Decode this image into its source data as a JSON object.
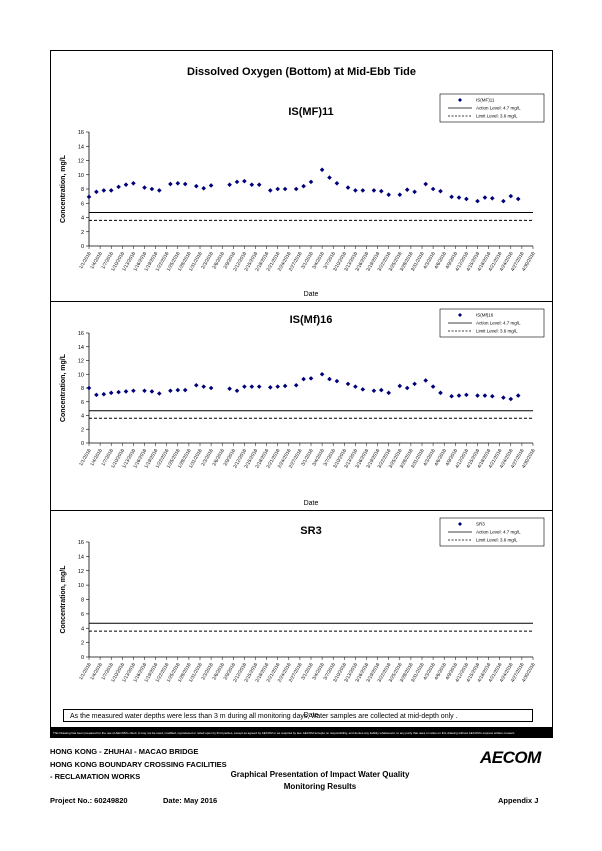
{
  "page": {
    "main_title": "Dissolved Oxygen (Bottom) at Mid-Ebb Tide",
    "note": "As the measured water depths were less than 3 m during all monitoring days, water samples are collected  at mid-depth only .",
    "disclaimer": "This Drawing has been prepared for the use of AECOM's client. It may not be used, modified, reproduced or relied upon by third parties, except as agreed by AECOM or as required by law. AECOM accepts no responsibility, and denies any liability whatsoever, to any party that uses or relies on this drawing without AECOM's express written consent.",
    "footer": {
      "line1": "HONG KONG - ZHUHAI - MACAO BRIDGE",
      "line2": "HONG KONG BOUNDARY CROSSING FACILITIES",
      "line3": "- RECLAMATION WORKS",
      "center1": "Graphical Presentation of Impact Water Quality",
      "center2": "Monitoring Results",
      "project": "Project No.: 60249820",
      "date": "Date: May 2016",
      "appendix": "Appendix J",
      "logo": "AECOM"
    }
  },
  "chart_data": [
    {
      "type": "scatter",
      "title": "IS(MF)11",
      "xlabel": "Date",
      "ylabel": "Concentration, mg/L",
      "ylim": [
        0,
        16
      ],
      "yticks": [
        0,
        2,
        4,
        6,
        8,
        10,
        12,
        14,
        16
      ],
      "xtick_labels": [
        "1/1/2016",
        "1/4/2016",
        "1/7/2016",
        "1/10/2016",
        "1/13/2016",
        "1/16/2016",
        "1/19/2016",
        "1/22/2016",
        "1/25/2016",
        "1/28/2016",
        "1/31/2016",
        "2/3/2016",
        "2/6/2016",
        "2/9/2016",
        "2/12/2016",
        "2/15/2016",
        "2/18/2016",
        "2/21/2016",
        "2/24/2016",
        "2/27/2016",
        "3/1/2016",
        "3/4/2016",
        "3/7/2016",
        "3/10/2016",
        "3/13/2016",
        "3/16/2016",
        "3/19/2016",
        "3/22/2016",
        "3/25/2016",
        "3/28/2016",
        "3/31/2016",
        "4/3/2016",
        "4/6/2016",
        "4/9/2016",
        "4/12/2016",
        "4/15/2016",
        "4/18/2016",
        "4/21/2016",
        "4/24/2016",
        "4/27/2016",
        "4/30/2016"
      ],
      "legend": {
        "position": "top-right",
        "series_label": "IS(MF)11",
        "action_label": "Action Level: 4.7 mg/L",
        "limit_label": "Limit Level: 3.6 mg/L"
      },
      "action_level": 4.7,
      "limit_level": 3.6,
      "points": [
        [
          "1/1/2016",
          6.9
        ],
        [
          "1/3/2016",
          7.6
        ],
        [
          "1/5/2016",
          7.8
        ],
        [
          "1/7/2016",
          7.8
        ],
        [
          "1/9/2016",
          8.3
        ],
        [
          "1/11/2016",
          8.6
        ],
        [
          "1/13/2016",
          8.8
        ],
        [
          "1/16/2016",
          8.2
        ],
        [
          "1/18/2016",
          8.0
        ],
        [
          "1/20/2016",
          7.8
        ],
        [
          "1/23/2016",
          8.7
        ],
        [
          "1/25/2016",
          8.8
        ],
        [
          "1/27/2016",
          8.7
        ],
        [
          "1/30/2016",
          8.4
        ],
        [
          "2/1/2016",
          8.1
        ],
        [
          "2/3/2016",
          8.5
        ],
        [
          "2/8/2016",
          8.6
        ],
        [
          "2/10/2016",
          9.0
        ],
        [
          "2/12/2016",
          9.1
        ],
        [
          "2/14/2016",
          8.6
        ],
        [
          "2/16/2016",
          8.6
        ],
        [
          "2/19/2016",
          7.8
        ],
        [
          "2/21/2016",
          8.0
        ],
        [
          "2/23/2016",
          8.0
        ],
        [
          "2/26/2016",
          8.0
        ],
        [
          "2/28/2016",
          8.4
        ],
        [
          "3/1/2016",
          9.0
        ],
        [
          "3/4/2016",
          10.7
        ],
        [
          "3/6/2016",
          9.6
        ],
        [
          "3/8/2016",
          8.8
        ],
        [
          "3/11/2016",
          8.2
        ],
        [
          "3/13/2016",
          7.8
        ],
        [
          "3/15/2016",
          7.8
        ],
        [
          "3/18/2016",
          7.8
        ],
        [
          "3/20/2016",
          7.7
        ],
        [
          "3/22/2016",
          7.2
        ],
        [
          "3/25/2016",
          7.2
        ],
        [
          "3/27/2016",
          7.9
        ],
        [
          "3/29/2016",
          7.6
        ],
        [
          "4/1/2016",
          8.7
        ],
        [
          "4/3/2016",
          8.0
        ],
        [
          "4/5/2016",
          7.7
        ],
        [
          "4/8/2016",
          6.9
        ],
        [
          "4/10/2016",
          6.8
        ],
        [
          "4/12/2016",
          6.6
        ],
        [
          "4/15/2016",
          6.3
        ],
        [
          "4/17/2016",
          6.8
        ],
        [
          "4/19/2016",
          6.7
        ],
        [
          "4/22/2016",
          6.3
        ],
        [
          "4/24/2016",
          7.0
        ],
        [
          "4/26/2016",
          6.6
        ]
      ]
    },
    {
      "type": "scatter",
      "title": "IS(Mf)16",
      "xlabel": "Date",
      "ylabel": "Concentration, mg/L",
      "ylim": [
        0,
        16
      ],
      "yticks": [
        0,
        2,
        4,
        6,
        8,
        10,
        12,
        14,
        16
      ],
      "xtick_labels": [
        "1/1/2016",
        "1/4/2016",
        "1/7/2016",
        "1/10/2016",
        "1/13/2016",
        "1/16/2016",
        "1/19/2016",
        "1/22/2016",
        "1/25/2016",
        "1/28/2016",
        "1/31/2016",
        "2/3/2016",
        "2/6/2016",
        "2/9/2016",
        "2/12/2016",
        "2/15/2016",
        "2/18/2016",
        "2/21/2016",
        "2/24/2016",
        "2/27/2016",
        "3/1/2016",
        "3/4/2016",
        "3/7/2016",
        "3/10/2016",
        "3/13/2016",
        "3/16/2016",
        "3/19/2016",
        "3/22/2016",
        "3/25/2016",
        "3/28/2016",
        "3/31/2016",
        "4/3/2016",
        "4/6/2016",
        "4/9/2016",
        "4/12/2016",
        "4/15/2016",
        "4/18/2016",
        "4/21/2016",
        "4/24/2016",
        "4/27/2016",
        "4/30/2016"
      ],
      "legend": {
        "position": "top-right",
        "series_label": "IS(Mf)16",
        "action_label": "Action Level: 4.7 mg/L",
        "limit_label": "Limit Level: 3.6 mg/L"
      },
      "action_level": 4.7,
      "limit_level": 3.6,
      "points": [
        [
          "1/1/2016",
          8.0
        ],
        [
          "1/3/2016",
          7.0
        ],
        [
          "1/5/2016",
          7.1
        ],
        [
          "1/7/2016",
          7.3
        ],
        [
          "1/9/2016",
          7.4
        ],
        [
          "1/11/2016",
          7.5
        ],
        [
          "1/13/2016",
          7.6
        ],
        [
          "1/16/2016",
          7.6
        ],
        [
          "1/18/2016",
          7.5
        ],
        [
          "1/20/2016",
          7.2
        ],
        [
          "1/23/2016",
          7.6
        ],
        [
          "1/25/2016",
          7.7
        ],
        [
          "1/27/2016",
          7.7
        ],
        [
          "1/30/2016",
          8.4
        ],
        [
          "2/1/2016",
          8.2
        ],
        [
          "2/3/2016",
          8.0
        ],
        [
          "2/8/2016",
          7.9
        ],
        [
          "2/10/2016",
          7.6
        ],
        [
          "2/12/2016",
          8.2
        ],
        [
          "2/14/2016",
          8.2
        ],
        [
          "2/16/2016",
          8.2
        ],
        [
          "2/19/2016",
          8.1
        ],
        [
          "2/21/2016",
          8.2
        ],
        [
          "2/23/2016",
          8.3
        ],
        [
          "2/26/2016",
          8.4
        ],
        [
          "2/28/2016",
          9.3
        ],
        [
          "3/1/2016",
          9.4
        ],
        [
          "3/4/2016",
          10.0
        ],
        [
          "3/6/2016",
          9.3
        ],
        [
          "3/8/2016",
          9.0
        ],
        [
          "3/11/2016",
          8.6
        ],
        [
          "3/13/2016",
          8.2
        ],
        [
          "3/15/2016",
          7.8
        ],
        [
          "3/18/2016",
          7.6
        ],
        [
          "3/20/2016",
          7.7
        ],
        [
          "3/22/2016",
          7.3
        ],
        [
          "3/25/2016",
          8.3
        ],
        [
          "3/27/2016",
          8.0
        ],
        [
          "3/29/2016",
          8.6
        ],
        [
          "4/1/2016",
          9.1
        ],
        [
          "4/3/2016",
          8.2
        ],
        [
          "4/5/2016",
          7.3
        ],
        [
          "4/8/2016",
          6.8
        ],
        [
          "4/10/2016",
          6.9
        ],
        [
          "4/12/2016",
          7.0
        ],
        [
          "4/15/2016",
          6.9
        ],
        [
          "4/17/2016",
          6.9
        ],
        [
          "4/19/2016",
          6.8
        ],
        [
          "4/22/2016",
          6.6
        ],
        [
          "4/24/2016",
          6.4
        ],
        [
          "4/26/2016",
          6.9
        ]
      ]
    },
    {
      "type": "scatter",
      "title": "SR3",
      "xlabel": "Date",
      "ylabel": "Concentration, mg/L",
      "ylim": [
        0,
        16
      ],
      "yticks": [
        0,
        2,
        4,
        6,
        8,
        10,
        12,
        14,
        16
      ],
      "xtick_labels": [
        "1/1/2016",
        "1/4/2016",
        "1/7/2016",
        "1/10/2016",
        "1/13/2016",
        "1/16/2016",
        "1/19/2016",
        "1/22/2016",
        "1/25/2016",
        "1/28/2016",
        "1/31/2016",
        "2/3/2016",
        "2/6/2016",
        "2/9/2016",
        "2/12/2016",
        "2/15/2016",
        "2/18/2016",
        "2/21/2016",
        "2/24/2016",
        "2/27/2016",
        "3/1/2016",
        "3/4/2016",
        "3/7/2016",
        "3/10/2016",
        "3/13/2016",
        "3/16/2016",
        "3/19/2016",
        "3/22/2016",
        "3/25/2016",
        "3/28/2016",
        "3/31/2016",
        "4/3/2016",
        "4/6/2016",
        "4/9/2016",
        "4/12/2016",
        "4/15/2016",
        "4/18/2016",
        "4/21/2016",
        "4/24/2016",
        "4/27/2016",
        "4/30/2016"
      ],
      "legend": {
        "position": "top-right",
        "series_label": "SR3",
        "action_label": "Action Level: 4.7 mg/L",
        "limit_label": "Limit Level: 3.6 mg/L"
      },
      "action_level": 4.7,
      "limit_level": 3.6,
      "points": []
    }
  ]
}
